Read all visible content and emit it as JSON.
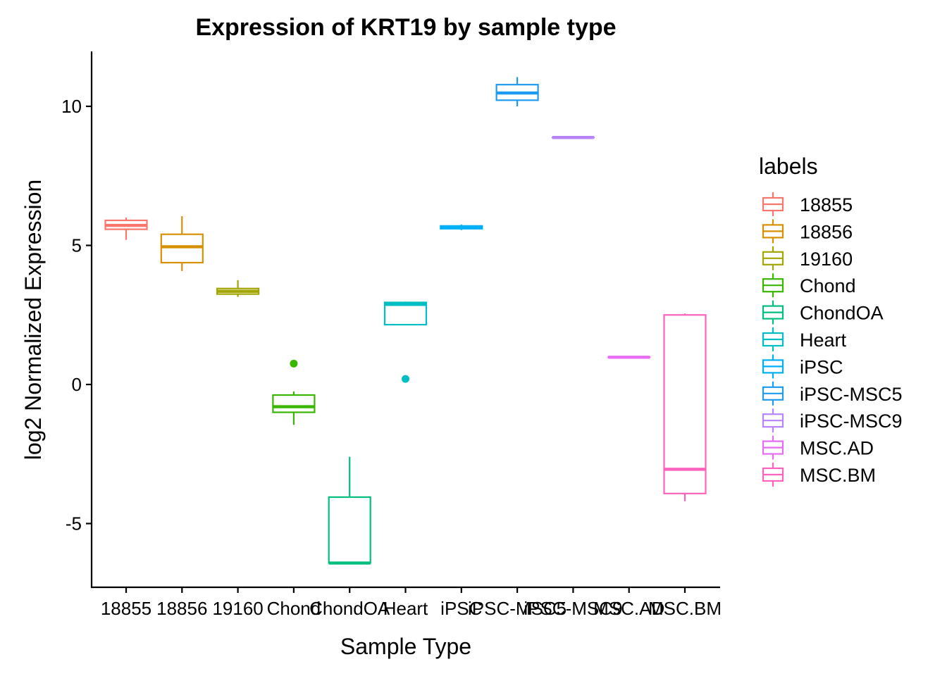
{
  "chart_data": {
    "type": "box",
    "title": "Expression of KRT19 by sample type",
    "xlabel": "Sample Type",
    "ylabel": "log2 Normalized Expression",
    "ylim": [
      -7.2,
      12
    ],
    "yticks": [
      -5,
      0,
      5,
      10
    ],
    "ytick_labels": [
      "-5",
      "0",
      "5",
      "10"
    ],
    "grid": false,
    "legend": {
      "title": "labels",
      "position": "right"
    },
    "categories": [
      "18855",
      "18856",
      "19160",
      "Chond",
      "ChondOA",
      "Heart",
      "iPSC",
      "iPSC-MSC5",
      "iPSC-MSC9",
      "MSC.AD",
      "MSC.BM"
    ],
    "series": [
      {
        "name": "18855",
        "color": "#F8766D",
        "whisker_low": 5.2,
        "q1": 5.58,
        "median": 5.72,
        "q3": 5.9,
        "whisker_high": 6.0,
        "outliers": []
      },
      {
        "name": "18856",
        "color": "#D89000",
        "whisker_low": 4.08,
        "q1": 4.38,
        "median": 4.95,
        "q3": 5.4,
        "whisker_high": 6.05,
        "outliers": []
      },
      {
        "name": "19160",
        "color": "#A3A500",
        "whisker_low": 3.15,
        "q1": 3.25,
        "median": 3.35,
        "q3": 3.45,
        "whisker_high": 3.75,
        "outliers": []
      },
      {
        "name": "Chond",
        "color": "#39B600",
        "whisker_low": -1.45,
        "q1": -1.0,
        "median": -0.8,
        "q3": -0.38,
        "whisker_high": -0.25,
        "outliers": [
          0.75
        ]
      },
      {
        "name": "ChondOA",
        "color": "#00BF7D",
        "whisker_low": -6.45,
        "q1": -6.42,
        "median": -6.42,
        "q3": -4.05,
        "whisker_high": -2.6,
        "outliers": []
      },
      {
        "name": "Heart",
        "color": "#00BFC4",
        "whisker_low": 2.15,
        "q1": 2.15,
        "median": 2.88,
        "q3": 2.95,
        "whisker_high": 2.98,
        "outliers": [
          0.2
        ]
      },
      {
        "name": "iPSC",
        "color": "#00B0F6",
        "whisker_low": 5.55,
        "q1": 5.6,
        "median": 5.65,
        "q3": 5.7,
        "whisker_high": 5.75,
        "outliers": []
      },
      {
        "name": "iPSC-MSC5",
        "color": "#1E9BF0",
        "whisker_low": 10.0,
        "q1": 10.22,
        "median": 10.48,
        "q3": 10.78,
        "whisker_high": 11.05,
        "outliers": []
      },
      {
        "name": "iPSC-MSC9",
        "color": "#B983FF",
        "whisker_low": 8.88,
        "q1": 8.88,
        "median": 8.88,
        "q3": 8.88,
        "whisker_high": 8.88,
        "outliers": []
      },
      {
        "name": "MSC.AD",
        "color": "#E76BF3",
        "whisker_low": 0.98,
        "q1": 0.98,
        "median": 0.98,
        "q3": 0.98,
        "whisker_high": 0.98,
        "outliers": []
      },
      {
        "name": "MSC.BM",
        "color": "#FF62BC",
        "whisker_low": -4.2,
        "q1": -3.92,
        "median": -3.05,
        "q3": 2.5,
        "whisker_high": 2.55,
        "outliers": []
      }
    ]
  }
}
